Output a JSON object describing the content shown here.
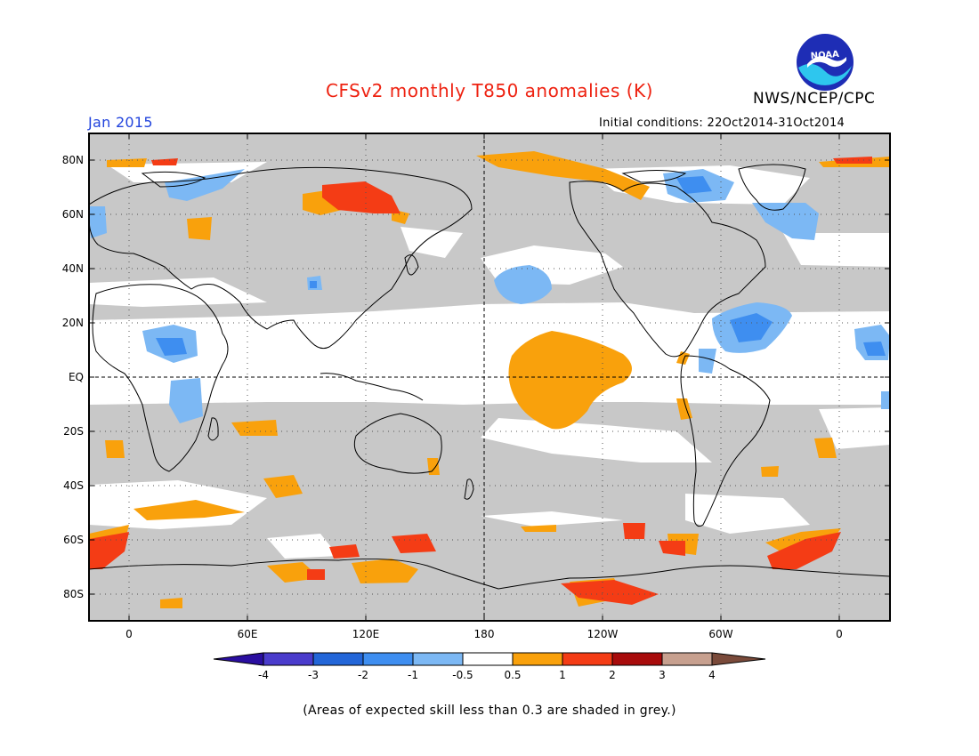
{
  "map": {
    "title": "CFSv2 monthly T850 anomalies (K)",
    "agency": "NWS/NCEP/CPC",
    "logo_text": "NOAA",
    "valid_month": "Jan 2015",
    "initial_conditions": "Initial conditions: 22Oct2014-31Oct2014",
    "footnote": "(Areas of expected skill less than 0.3 are shaded in grey.)",
    "lat_labels": [
      "80N",
      "60N",
      "40N",
      "20N",
      "EQ",
      "20S",
      "40S",
      "60S",
      "80S"
    ],
    "lon_labels": [
      "0",
      "60E",
      "120E",
      "180",
      "120W",
      "60W",
      "0"
    ],
    "colorbar": {
      "labels": [
        "-4",
        "-3",
        "-2",
        "-1",
        "-0.5",
        "0.5",
        "1",
        "2",
        "3",
        "4"
      ],
      "colors": [
        "#2a0ea0",
        "#4a3ccc",
        "#2366d8",
        "#3e8ef0",
        "#7cb8f4",
        "#ffffff",
        "#f9a10c",
        "#f43c15",
        "#a80b0b",
        "#c7a08f",
        "#7a4a3a"
      ]
    },
    "colors": {
      "skill_mask_grey": "#c8c8c8",
      "warm_orange": "#f9a10c",
      "warm_red": "#f43c15",
      "cool_light_blue": "#7cb8f4",
      "cool_blue": "#3e8ef0",
      "title_red": "#ee2211",
      "month_blue": "#2244dd"
    }
  }
}
